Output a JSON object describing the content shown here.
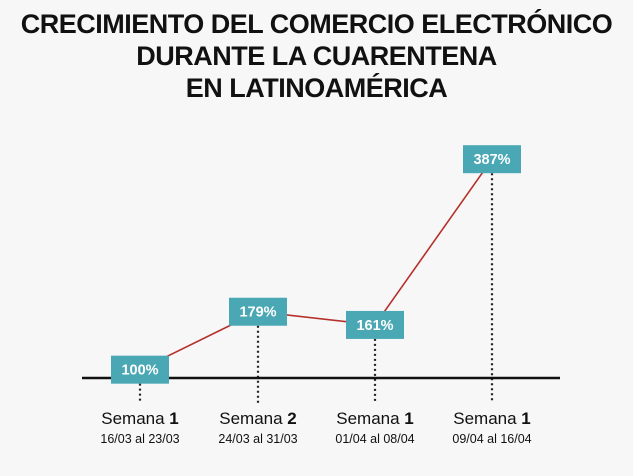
{
  "title_lines": [
    "CRECIMIENTO DEL COMERCIO ELECTRÓNICO",
    "DURANTE LA CUARENTENA",
    "EN LATINOAMÉRICA"
  ],
  "colors": {
    "box": "#4aa8b4",
    "line": "#b5302a",
    "axis": "#111111",
    "dots": "#222222"
  },
  "chart_data": {
    "type": "line",
    "categories": [
      "Semana 1",
      "Semana 2",
      "Semana 1",
      "Semana 1"
    ],
    "category_words": [
      "Semana",
      "Semana",
      "Semana",
      "Semana"
    ],
    "category_numbers": [
      "1",
      "2",
      "1",
      "1"
    ],
    "date_ranges": [
      "16/03 al 23/03",
      "24/03 al 31/03",
      "01/04 al 08/04",
      "09/04 al 16/04"
    ],
    "values": [
      100,
      179,
      161,
      387
    ],
    "value_labels": [
      "100%",
      "179%",
      "161%",
      "387%"
    ],
    "unit": "%",
    "ylim": [
      0,
      420
    ],
    "grid": false,
    "legend": "none"
  }
}
